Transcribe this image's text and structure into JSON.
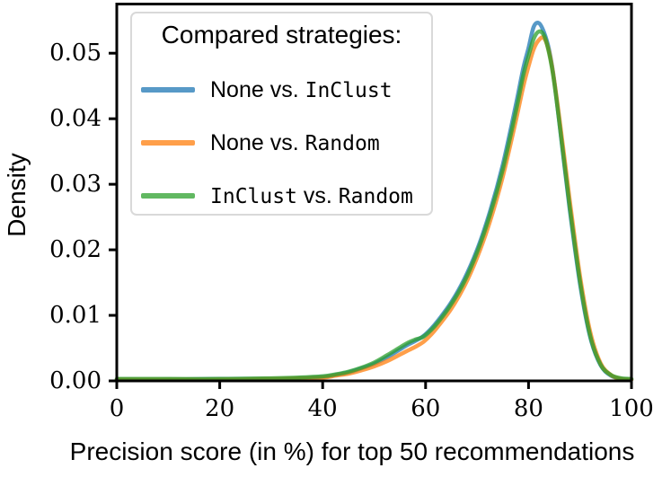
{
  "figure": {
    "background": "#ffffff",
    "frame_color": "#000000",
    "text_color": "#000000"
  },
  "axes": {
    "xlabel": "Precision score (in %) for top 50 recommendations",
    "ylabel": "Density",
    "xtick_labels": [
      "0",
      "20",
      "40",
      "60",
      "80",
      "100"
    ],
    "ytick_labels": [
      "0.00",
      "0.01",
      "0.02",
      "0.03",
      "0.04",
      "0.05"
    ]
  },
  "legend": {
    "title": "Compared strategies:",
    "border_color": "#d9d9d9",
    "items": [
      {
        "parts": [
          {
            "t": "None vs. ",
            "font": "sans"
          },
          {
            "t": "InClust",
            "font": "mono"
          }
        ]
      },
      {
        "parts": [
          {
            "t": "None vs. ",
            "font": "sans"
          },
          {
            "t": "Random",
            "font": "mono"
          }
        ]
      },
      {
        "parts": [
          {
            "t": "InClust",
            "font": "mono"
          },
          {
            "t": " vs. ",
            "font": "sans"
          },
          {
            "t": "Random",
            "font": "mono"
          }
        ]
      }
    ]
  },
  "chart_data": {
    "type": "line",
    "subtype": "kde-density",
    "title": "",
    "xlabel": "Precision score (in %) for top 50 recommendations",
    "ylabel": "Density",
    "xlim": [
      0,
      100
    ],
    "ylim": [
      0,
      0.0575
    ],
    "xticks": [
      0,
      20,
      40,
      60,
      80,
      100
    ],
    "yticks": [
      0,
      0.01,
      0.02,
      0.03,
      0.04,
      0.05
    ],
    "grid": false,
    "legend_title": "Compared strategies:",
    "legend_position": "upper left",
    "line_width": 4.5,
    "line_opacity": 0.75,
    "x": [
      0,
      10,
      20,
      30,
      35,
      40,
      42.5,
      45,
      47.5,
      50,
      52.5,
      55,
      56.5,
      58,
      59.5,
      61,
      62.5,
      65,
      67.5,
      70,
      72.5,
      75,
      77.5,
      79,
      80,
      81,
      82,
      83,
      84,
      85,
      86.5,
      88,
      90,
      92,
      94,
      96,
      98,
      100
    ],
    "series": [
      {
        "name": "None vs. InClust",
        "color": "#1f77b4",
        "peak_x": 81.7,
        "peak_density": 0.0546,
        "values": [
          0.0002,
          0.0002,
          0.0003,
          0.0003,
          0.0004,
          0.0006,
          0.0009,
          0.0013,
          0.0019,
          0.0026,
          0.0036,
          0.0048,
          0.0055,
          0.0061,
          0.0068,
          0.0079,
          0.0093,
          0.012,
          0.0155,
          0.02,
          0.0258,
          0.033,
          0.042,
          0.0478,
          0.0508,
          0.054,
          0.0546,
          0.0532,
          0.0505,
          0.0458,
          0.036,
          0.0262,
          0.0148,
          0.0066,
          0.0024,
          0.0008,
          0.0003,
          0.0002
        ]
      },
      {
        "name": "None vs. Random",
        "color": "#ff7f0e",
        "peak_x": 82.5,
        "peak_density": 0.0523,
        "values": [
          0.0002,
          0.0002,
          0.0002,
          0.0003,
          0.0004,
          0.0005,
          0.0008,
          0.0011,
          0.0016,
          0.0022,
          0.003,
          0.004,
          0.0046,
          0.0052,
          0.0059,
          0.007,
          0.0084,
          0.011,
          0.0144,
          0.0188,
          0.0243,
          0.0312,
          0.0396,
          0.045,
          0.048,
          0.0506,
          0.052,
          0.0523,
          0.0502,
          0.0458,
          0.037,
          0.0276,
          0.016,
          0.0074,
          0.0027,
          0.0009,
          0.0003,
          0.0002
        ]
      },
      {
        "name": "InClust vs. Random",
        "color": "#2ca02c",
        "peak_x": 82.2,
        "peak_density": 0.0533,
        "values": [
          0.0003,
          0.0003,
          0.0003,
          0.0004,
          0.0005,
          0.0007,
          0.001,
          0.0014,
          0.002,
          0.0028,
          0.0039,
          0.0051,
          0.0058,
          0.0063,
          0.0067,
          0.0077,
          0.009,
          0.0117,
          0.0151,
          0.0196,
          0.0253,
          0.0323,
          0.041,
          0.0467,
          0.0496,
          0.0522,
          0.0533,
          0.0527,
          0.05,
          0.0455,
          0.0362,
          0.0266,
          0.0152,
          0.0068,
          0.0025,
          0.0009,
          0.0004,
          0.0003
        ]
      }
    ]
  }
}
